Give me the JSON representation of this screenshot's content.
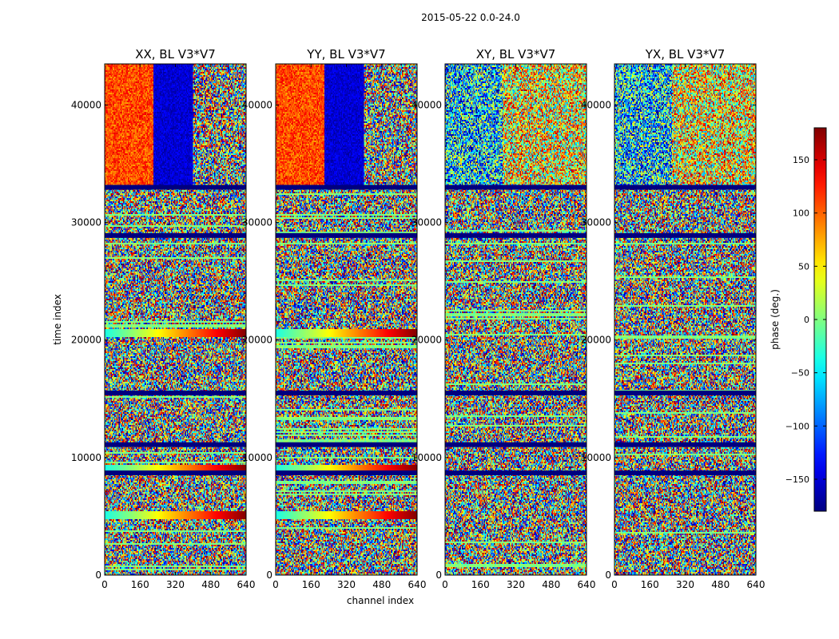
{
  "chart_data": {
    "type": "heatmap",
    "suptitle": "2015-05-22 0.0-24.0",
    "xlabel": "channel index",
    "ylabel": "time index",
    "xlim": [
      0,
      640
    ],
    "ylim": [
      0,
      43500
    ],
    "x_ticks": [
      0,
      160,
      320,
      480,
      640
    ],
    "y_ticks": [
      0,
      10000,
      20000,
      30000,
      40000
    ],
    "panels": [
      {
        "title": "XX, BL V3*V7",
        "pol": "XX"
      },
      {
        "title": "YY, BL V3*V7",
        "pol": "YY"
      },
      {
        "title": "XY, BL V3*V7",
        "pol": "XY"
      },
      {
        "title": "YX, BL V3*V7",
        "pol": "YX"
      }
    ],
    "colorbar": {
      "label": "phase (deg.)",
      "range": [
        -180,
        180
      ],
      "ticks": [
        -150,
        -100,
        -50,
        0,
        50,
        100,
        150
      ],
      "colormap": "jet"
    },
    "flagged_time_rows": [
      33000,
      28900,
      15500,
      11100,
      8700
    ],
    "highlight_bands": [
      {
        "pol": "XX",
        "time": 20700
      },
      {
        "pol": "YY",
        "time": 20700
      },
      {
        "pol": "XX",
        "time": 5200
      },
      {
        "pol": "YY",
        "time": 5200
      },
      {
        "pol": "XX",
        "time": 9100
      },
      {
        "pol": "YY",
        "time": 9100
      }
    ]
  }
}
